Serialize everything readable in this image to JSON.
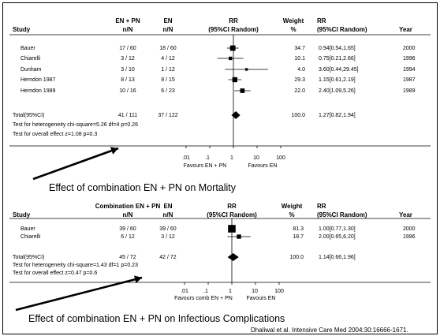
{
  "plots": [
    {
      "headers": {
        "study": "Study",
        "g1_line1": "EN + PN",
        "g1_line2": "n/N",
        "g2_line1": "EN",
        "g2_line2": "n/N",
        "rr_line1": "RR",
        "rr_line2": "(95%CI Random)",
        "w_line1": "Weight",
        "w_line2": "%",
        "rrtxt_line1": "RR",
        "rrtxt_line2": "(95%CI Random)",
        "year": "Year"
      },
      "rows": [
        {
          "study": "Bauer",
          "g1": "17 / 60",
          "g2": "18 / 60",
          "weight": "34.7",
          "rr_text": "0.94[0.54,1.65]",
          "year": "2000"
        },
        {
          "study": "Chiarelli",
          "g1": "3 / 12",
          "g2": "4 / 12",
          "weight": "10.1",
          "rr_text": "0.75[0.21,2.66]",
          "year": "1996"
        },
        {
          "study": "Dunham",
          "g1": "3 / 10",
          "g2": "1 / 12",
          "weight": "4.0",
          "rr_text": "3.60[0.44,29.45]",
          "year": "1994"
        },
        {
          "study": "Herndon 1987",
          "g1": "8 / 13",
          "g2": "8 / 15",
          "weight": "29.3",
          "rr_text": "1.15[0.61,2.19]",
          "year": "1987"
        },
        {
          "study": "Herndon 1989",
          "g1": "10 / 16",
          "g2": "6 / 23",
          "weight": "22.0",
          "rr_text": "2.40[1.09,5.26]",
          "year": "1989"
        }
      ],
      "total": {
        "label": "Total(95%CI)",
        "g1": "41 / 111",
        "g2": "37 / 122",
        "weight": "100.0",
        "rr_text": "1.27[0.82,1.94]"
      },
      "het_text": "Test for heterogeneity chi-square=5.26 df=4 p=0.26",
      "effect_text": "Test for overall effect z=1.08 p=0.3",
      "ticks": [
        ".01",
        ".1",
        "1",
        "10",
        "100"
      ],
      "favours_left": "Favours EN + PN",
      "favours_right": "Favours EN",
      "caption": "Effect of combination EN + PN on Mortality"
    },
    {
      "headers": {
        "study": "Study",
        "g1_line1": "Combination EN + PN",
        "g1_line2": "n/N",
        "g2_line1": "EN",
        "g2_line2": "n/N",
        "rr_line1": "RR",
        "rr_line2": "(95%CI Random)",
        "w_line1": "Weight",
        "w_line2": "%",
        "rrtxt_line1": "RR",
        "rrtxt_line2": "(95%CI Random)",
        "year": "Year"
      },
      "rows": [
        {
          "study": "Bauer",
          "g1": "39 / 60",
          "g2": "39 / 60",
          "weight": "81.3",
          "rr_text": "1.00[0.77,1.30]",
          "year": "2000"
        },
        {
          "study": "Chiarelli",
          "g1": "6 / 12",
          "g2": "3 / 12",
          "weight": "18.7",
          "rr_text": "2.00[0.65,6.20]",
          "year": "1996"
        }
      ],
      "total": {
        "label": "Total(95%CI)",
        "g1": "45 / 72",
        "g2": "42 / 72",
        "weight": "100.0",
        "rr_text": "1.14[0.66,1.96]"
      },
      "het_text": "Test for heterogeneity chi-square=1.43 df=1 p=0.23",
      "effect_text": "Test for overall effect z=0.47 p=0.6",
      "ticks": [
        ".01",
        ".1",
        "1",
        "10",
        "100"
      ],
      "favours_left": "Favours comb EN + PN",
      "favours_right": "Favours EN",
      "caption": "Effect of combination EN + PN on Infectious Complications"
    }
  ],
  "citation": "Dhaliwal et al. Intensive Care Med 2004:30:16666-1671.",
  "chart_data": [
    {
      "type": "forest",
      "scale": "log",
      "xlim": [
        0.01,
        100
      ],
      "studies": [
        {
          "name": "Bauer",
          "rr": 0.94,
          "ci": [
            0.54,
            1.65
          ],
          "weight": 34.7
        },
        {
          "name": "Chiarelli",
          "rr": 0.75,
          "ci": [
            0.21,
            2.66
          ],
          "weight": 10.1
        },
        {
          "name": "Dunham",
          "rr": 3.6,
          "ci": [
            0.44,
            29.45
          ],
          "weight": 4.0
        },
        {
          "name": "Herndon 1987",
          "rr": 1.15,
          "ci": [
            0.61,
            2.19
          ],
          "weight": 29.3
        },
        {
          "name": "Herndon 1989",
          "rr": 2.4,
          "ci": [
            1.09,
            5.26
          ],
          "weight": 22.0
        }
      ],
      "pooled": {
        "rr": 1.27,
        "ci": [
          0.82,
          1.94
        ]
      }
    },
    {
      "type": "forest",
      "scale": "log",
      "xlim": [
        0.01,
        100
      ],
      "studies": [
        {
          "name": "Bauer",
          "rr": 1.0,
          "ci": [
            0.77,
            1.3
          ],
          "weight": 81.3
        },
        {
          "name": "Chiarelli",
          "rr": 2.0,
          "ci": [
            0.65,
            6.2
          ],
          "weight": 18.7
        }
      ],
      "pooled": {
        "rr": 1.14,
        "ci": [
          0.66,
          1.96
        ]
      }
    }
  ]
}
